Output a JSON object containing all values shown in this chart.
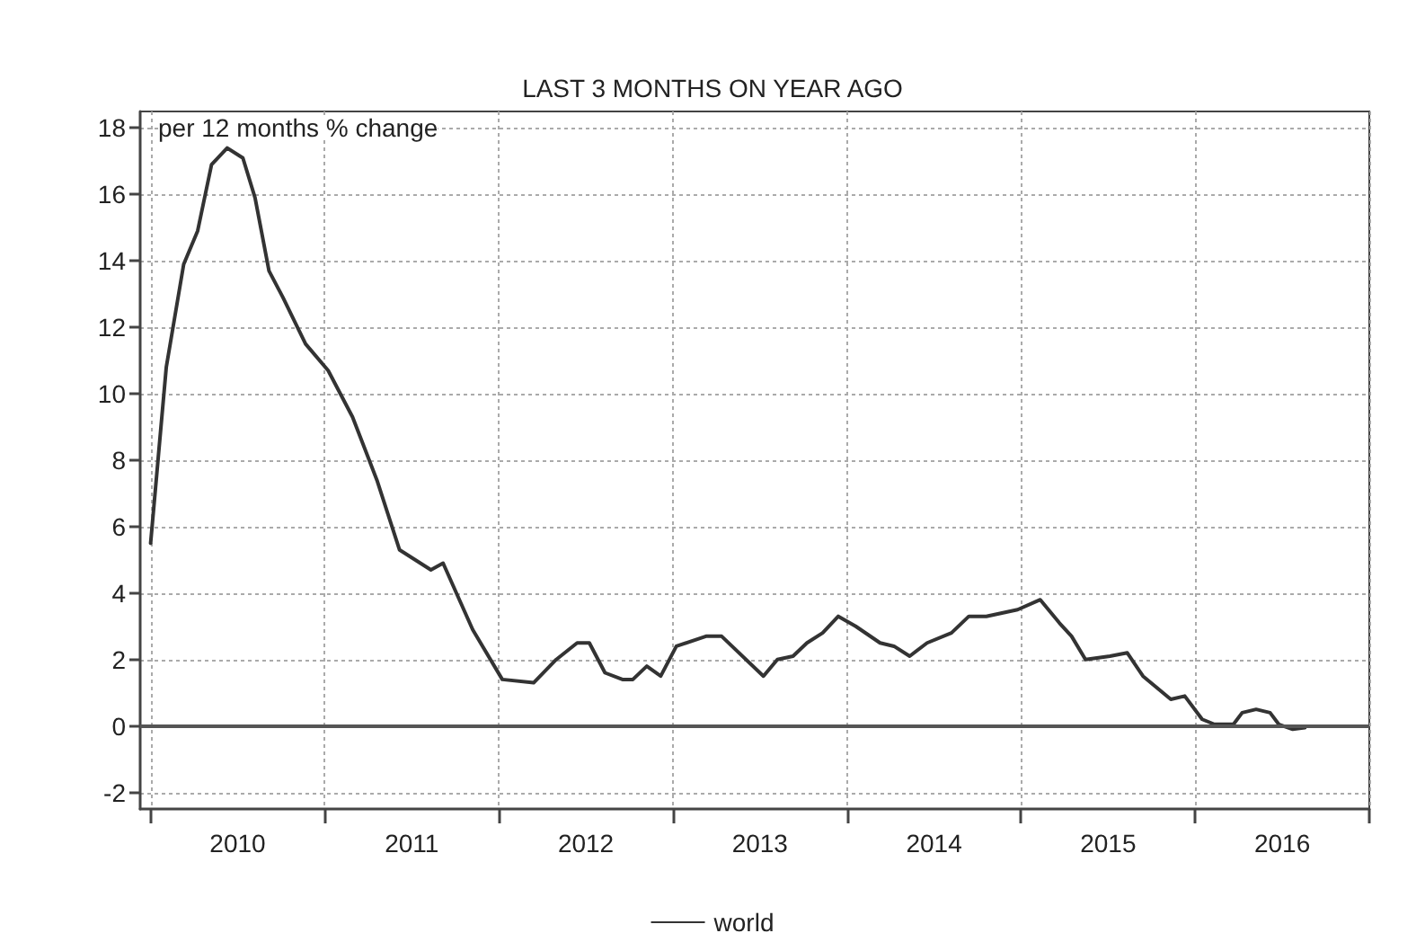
{
  "chart_data": {
    "type": "line",
    "title": "LAST 3 MONTHS ON YEAR AGO",
    "ylabel": "per 12 months % change",
    "x": [
      2010.0,
      2010.09,
      2010.19,
      2010.27,
      2010.35,
      2010.44,
      2010.53,
      2010.6,
      2010.68,
      2010.76,
      2010.89,
      2011.02,
      2011.16,
      2011.3,
      2011.43,
      2011.61,
      2011.68,
      2011.85,
      2012.02,
      2012.2,
      2012.33,
      2012.45,
      2012.52,
      2012.61,
      2012.71,
      2012.77,
      2012.85,
      2012.93,
      2013.02,
      2013.19,
      2013.28,
      2013.52,
      2013.6,
      2013.69,
      2013.77,
      2013.86,
      2013.95,
      2014.05,
      2014.19,
      2014.27,
      2014.36,
      2014.46,
      2014.6,
      2014.7,
      2014.8,
      2014.98,
      2015.11,
      2015.22,
      2015.29,
      2015.37,
      2015.51,
      2015.61,
      2015.7,
      2015.86,
      2015.94,
      2016.04,
      2016.11,
      2016.22,
      2016.27,
      2016.35,
      2016.43,
      2016.48,
      2016.56,
      2016.63
    ],
    "series": [
      {
        "name": "world",
        "color": "#333333",
        "values": [
          5.5,
          10.8,
          13.9,
          14.9,
          16.9,
          17.4,
          17.1,
          15.9,
          13.7,
          12.9,
          11.5,
          10.7,
          9.3,
          7.4,
          5.3,
          4.7,
          4.9,
          2.9,
          1.4,
          1.3,
          2.0,
          2.5,
          2.5,
          1.6,
          1.4,
          1.4,
          1.8,
          1.5,
          2.4,
          2.7,
          2.7,
          1.5,
          2.0,
          2.1,
          2.5,
          2.8,
          3.3,
          3.0,
          2.5,
          2.4,
          2.1,
          2.5,
          2.8,
          3.3,
          3.3,
          3.5,
          3.8,
          3.1,
          2.7,
          2.0,
          2.1,
          2.2,
          1.5,
          0.8,
          0.9,
          0.2,
          0.05,
          0.05,
          0.4,
          0.5,
          0.4,
          0.05,
          -0.1,
          -0.05
        ]
      }
    ],
    "xlim": [
      2009.94,
      2017
    ],
    "xticks": [
      {
        "value": 2010,
        "label": null
      },
      {
        "value": 2010.5,
        "label": "2010"
      },
      {
        "value": 2011,
        "label": null
      },
      {
        "value": 2011.5,
        "label": "2011"
      },
      {
        "value": 2012,
        "label": null
      },
      {
        "value": 2012.5,
        "label": "2012"
      },
      {
        "value": 2013,
        "label": null
      },
      {
        "value": 2013.5,
        "label": "2013"
      },
      {
        "value": 2014,
        "label": null
      },
      {
        "value": 2014.5,
        "label": "2014"
      },
      {
        "value": 2015,
        "label": null
      },
      {
        "value": 2015.5,
        "label": "2015"
      },
      {
        "value": 2016,
        "label": null
      },
      {
        "value": 2016.5,
        "label": "2016"
      },
      {
        "value": 2017,
        "label": null
      }
    ],
    "ylim": [
      -2.5,
      18.5
    ],
    "yticks": [
      -2,
      0,
      2,
      4,
      6,
      8,
      10,
      12,
      14,
      16,
      18
    ],
    "ref_lines": [
      {
        "axis": "y",
        "value": 0,
        "label": null,
        "color": "#555555"
      }
    ],
    "grid": true,
    "legend": "bottom",
    "marker": "none",
    "line_style": "solid"
  }
}
